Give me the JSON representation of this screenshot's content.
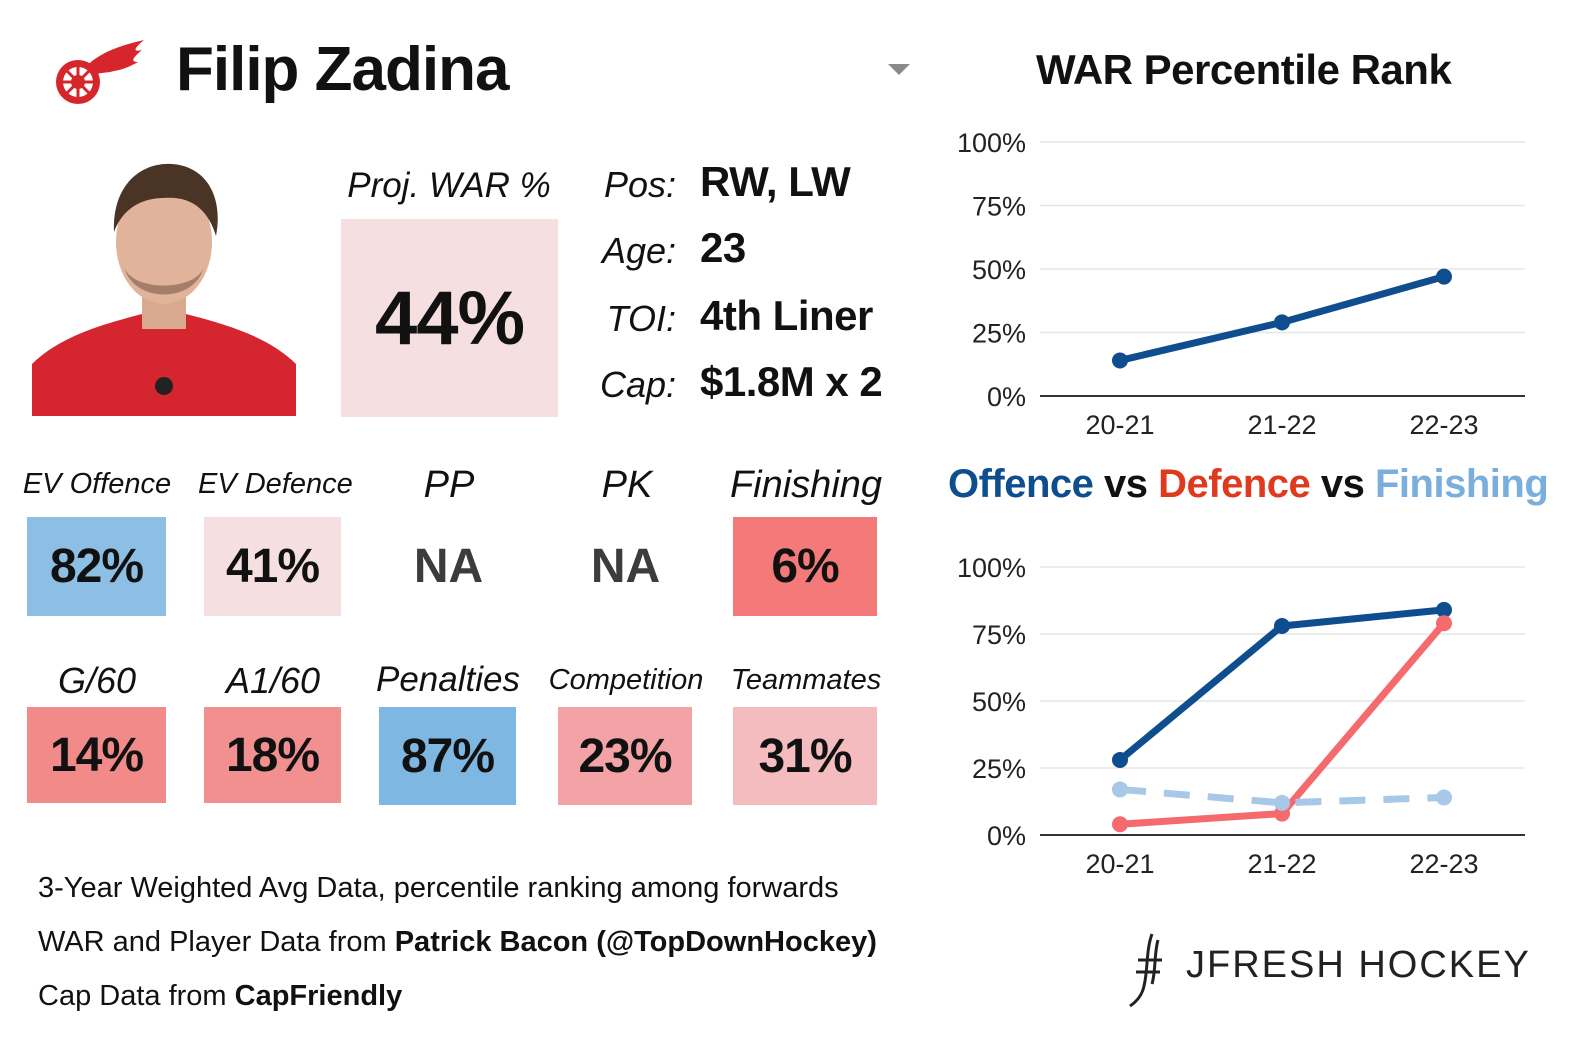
{
  "header": {
    "player_name": "Filip Zadina",
    "logo_icon": "red-wings-winged-wheel-icon",
    "dropdown_icon": "caret-down-icon"
  },
  "photo": {
    "icon": "player-headshot-image"
  },
  "projection": {
    "label": "Proj. WAR %",
    "value": "44%"
  },
  "info": [
    {
      "label": "Pos:",
      "value": "RW, LW"
    },
    {
      "label": "Age:",
      "value": "23"
    },
    {
      "label": "TOI:",
      "value": "4th Liner"
    },
    {
      "label": "Cap:",
      "value": "$1.8M x 2"
    }
  ],
  "metrics_row1": [
    {
      "label": "EV Offence",
      "value": "82%",
      "color": "#8cbfe3"
    },
    {
      "label": "EV Defence",
      "value": "41%",
      "color": "#f5dfe0"
    },
    {
      "label": "PP",
      "value": "NA",
      "color": ""
    },
    {
      "label": "PK",
      "value": "NA",
      "color": ""
    },
    {
      "label": "Finishing",
      "value": "6%",
      "color": "#f47a7a"
    }
  ],
  "metrics_row2": [
    {
      "label": "G/60",
      "value": "14%",
      "color": "#f28a8a"
    },
    {
      "label": "A1/60",
      "value": "18%",
      "color": "#f29090"
    },
    {
      "label": "Penalties",
      "value": "87%",
      "color": "#7fb7e3"
    },
    {
      "label": "Competition",
      "value": "23%",
      "color": "#f3a3a5"
    },
    {
      "label": "Teammates",
      "value": "31%",
      "color": "#f4bcbe"
    }
  ],
  "footnotes": {
    "line1": "3-Year Weighted Avg Data, percentile ranking among forwards",
    "line2_prefix": "WAR and Player Data from ",
    "line2_bold": "Patrick Bacon (@TopDownHockey)",
    "line3_prefix": "Cap Data from ",
    "line3_bold": "CapFriendly"
  },
  "brand": {
    "text": "JFRESH HOCKEY",
    "icon": "jfresh-hockey-logo-icon"
  },
  "colors": {
    "offence": "#0e4d8e",
    "defence": "#f46a6d",
    "finishing": "#a7c8e6",
    "defence_title": "#e03a1e",
    "finishing_title": "#7aaedd"
  },
  "chart_titles": {
    "war": "WAR Percentile Rank",
    "ovd_part1": "Offence",
    "ovd_vs1": " vs ",
    "ovd_part2": "Defence",
    "ovd_vs2": " vs ",
    "ovd_part3": "Finishing"
  },
  "chart_data": [
    {
      "type": "line",
      "title": "WAR Percentile Rank",
      "categories": [
        "20-21",
        "21-22",
        "22-23"
      ],
      "ylim": [
        0,
        100
      ],
      "yticks": [
        "0%",
        "25%",
        "50%",
        "75%",
        "100%"
      ],
      "grid": true,
      "series": [
        {
          "values": [
            14,
            29,
            47
          ],
          "color": "#0e4d8e",
          "dashed": false
        }
      ]
    },
    {
      "type": "line",
      "title": "Offence vs Defence vs Finishing",
      "categories": [
        "20-21",
        "21-22",
        "22-23"
      ],
      "ylim": [
        0,
        100
      ],
      "yticks": [
        "0%",
        "25%",
        "50%",
        "75%",
        "100%"
      ],
      "grid": true,
      "series": [
        {
          "name": "Offence",
          "values": [
            28,
            78,
            84
          ],
          "color": "#0e4d8e",
          "dashed": false
        },
        {
          "name": "Defence",
          "values": [
            4,
            8,
            79
          ],
          "color": "#f46a6d",
          "dashed": false
        },
        {
          "name": "Finishing",
          "values": [
            17,
            12,
            14
          ],
          "color": "#a7c8e6",
          "dashed": true
        }
      ]
    }
  ]
}
